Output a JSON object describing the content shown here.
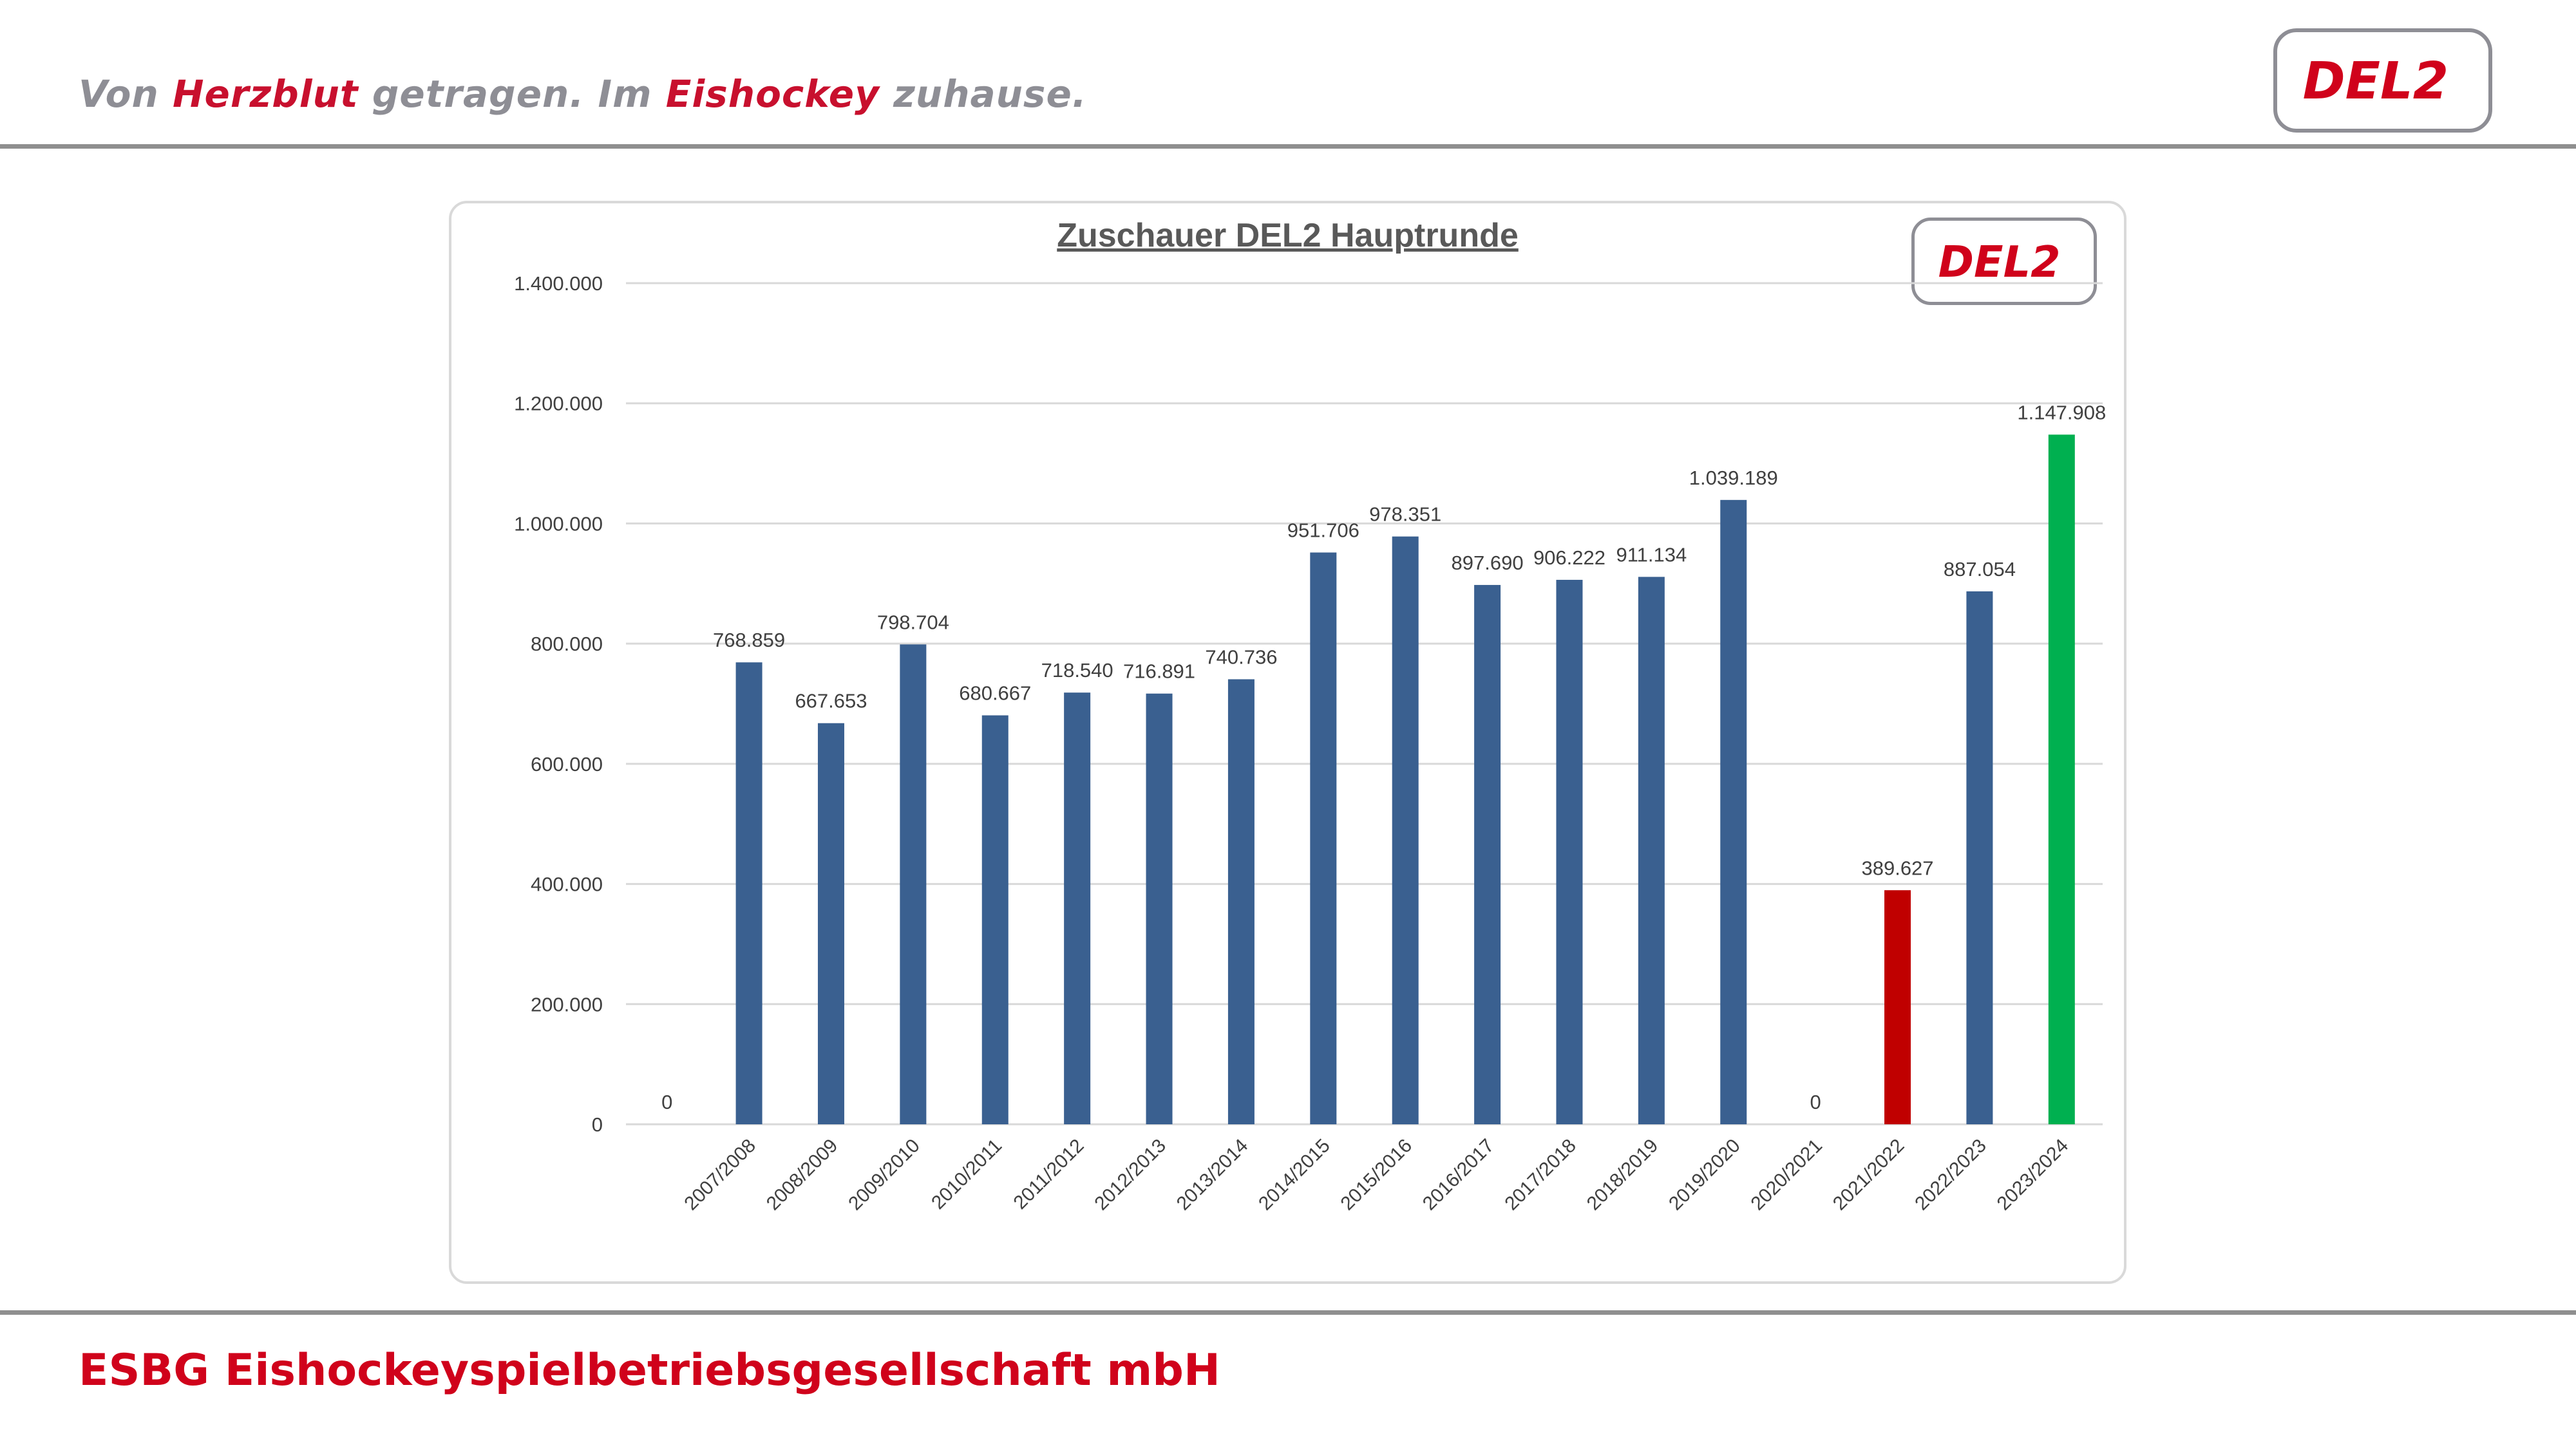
{
  "header": {
    "slogan": {
      "part1": "Von ",
      "part2": "Herzblut",
      "part3": " getragen. Im ",
      "part4": "Eishockey",
      "part5": " zuhause."
    },
    "logo_text": "DEL2"
  },
  "footer": {
    "company": "ESBG Eishockeyspielbetriebsgesellschaft mbH"
  },
  "colors": {
    "default_bar": "#3a6090",
    "highlight_low": "#c00000",
    "highlight_high": "#00b050",
    "brand_red": "#d0021b",
    "grid": "#d9d9d9",
    "text": "#404040"
  },
  "chart_data": {
    "type": "bar",
    "title": "Zuschauer DEL2 Hauptrunde",
    "xlabel": "",
    "ylabel": "",
    "ylim": [
      0,
      1400000
    ],
    "ytick_labels": [
      "0",
      "200.000",
      "400.000",
      "600.000",
      "800.000",
      "1.000.000",
      "1.200.000",
      "1.400.000"
    ],
    "categories": [
      "",
      "2007/2008",
      "2008/2009",
      "2009/2010",
      "2010/2011",
      "2011/2012",
      "2012/2013",
      "2013/2014",
      "2014/2015",
      "2015/2016",
      "2016/2017",
      "2017/2018",
      "2018/2019",
      "2019/2020",
      "2020/2021",
      "2021/2022",
      "2022/2023",
      "2023/2024"
    ],
    "values": [
      0,
      768859,
      667653,
      798704,
      680667,
      718540,
      716891,
      740736,
      951706,
      978351,
      897690,
      906222,
      911134,
      1039189,
      0,
      389627,
      887054,
      1147908
    ],
    "value_labels": [
      "0",
      "768.859",
      "667.653",
      "798.704",
      "680.667",
      "718.540",
      "716.891",
      "740.736",
      "951.706",
      "978.351",
      "897.690",
      "906.222",
      "911.134",
      "1.039.189",
      "0",
      "389.627",
      "887.054",
      "1.147.908"
    ],
    "bar_colors": [
      "#3a6090",
      "#3a6090",
      "#3a6090",
      "#3a6090",
      "#3a6090",
      "#3a6090",
      "#3a6090",
      "#3a6090",
      "#3a6090",
      "#3a6090",
      "#3a6090",
      "#3a6090",
      "#3a6090",
      "#3a6090",
      "#3a6090",
      "#c00000",
      "#3a6090",
      "#00b050"
    ],
    "grid": true,
    "legend": "none"
  }
}
